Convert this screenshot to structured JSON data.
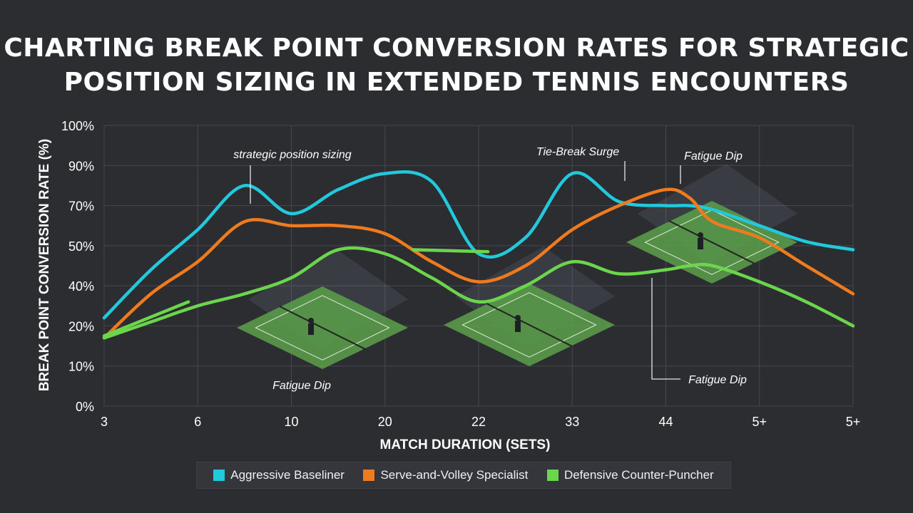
{
  "title_line1": "CHARTING BREAK POINT CONVERSION RATES FOR STRATEGIC",
  "title_line2": "POSITION SIZING IN EXTENDED TENNIS ENCOUNTERS",
  "chart_data": {
    "type": "line",
    "title": "CHARTING BREAK POINT CONVERSION RATES FOR STRATEGIC POSITION SIZING IN EXTENDED TENNIS ENCOUNTERS",
    "xlabel": "MATCH DURATION (SETS)",
    "ylabel": "BREAK POINT CONVERSION RATE (%)",
    "x_ticks": [
      "3",
      "6",
      "10",
      "20",
      "22",
      "33",
      "44",
      "5+",
      "5+"
    ],
    "y_ticks": [
      "0%",
      "10%",
      "20%",
      "40%",
      "50%",
      "70%",
      "90%",
      "100%"
    ],
    "y_note": "y tick labels are evenly spaced despite uneven values; series values are given in tick-index units (0 = 0%, 7 = 100%)",
    "ylim": [
      0,
      7
    ],
    "grid": true,
    "legend_position": "bottom",
    "x": [
      0,
      0.5,
      1,
      1.5,
      2,
      2.5,
      3,
      3.5,
      4,
      4.5,
      5,
      5.5,
      6,
      6.25,
      6.5,
      7,
      7.5,
      8
    ],
    "series": [
      {
        "name": "Aggressive Baseliner",
        "color": "#22c9dc",
        "values": [
          2.2,
          3.4,
          4.4,
          5.5,
          4.8,
          5.4,
          5.8,
          5.6,
          3.8,
          4.2,
          5.8,
          5.1,
          5.0,
          5.0,
          4.9,
          4.5,
          4.1,
          3.9
        ]
      },
      {
        "name": "Serve-and-Volley Specialist",
        "color": "#f07a1e",
        "values": [
          1.7,
          2.8,
          3.6,
          4.6,
          4.5,
          4.5,
          4.3,
          3.6,
          3.1,
          3.5,
          4.4,
          5.0,
          5.4,
          5.2,
          4.6,
          4.2,
          3.5,
          2.8
        ]
      },
      {
        "name": "Defensive Counter-Puncher",
        "color": "#6bd64c",
        "values": [
          1.7,
          2.1,
          2.5,
          2.8,
          3.2,
          3.9,
          3.8,
          3.2,
          2.6,
          3.0,
          3.6,
          3.3,
          3.4,
          3.5,
          3.5,
          3.1,
          2.6,
          2.0
        ]
      }
    ],
    "fragments": [
      {
        "color": "#6bd64c",
        "x": [
          0,
          0.9
        ],
        "values": [
          1.75,
          2.6
        ]
      },
      {
        "color": "#6bd64c",
        "x": [
          3.3,
          4.1
        ],
        "values": [
          3.9,
          3.85
        ]
      }
    ],
    "annotations": [
      {
        "text": "strategic position sizing",
        "x": 1.55,
        "y": 5.5
      },
      {
        "text": "Tie-Break Surge",
        "x": 5.55,
        "y": 5.9
      },
      {
        "text": "Fatigue Dip",
        "x": 6.15,
        "y": 5.5
      },
      {
        "text": "Fatigue Dip",
        "x": 2.35,
        "y": 2.5
      },
      {
        "text": "Fatigue Dip",
        "x": 5.8,
        "y": 3.15
      }
    ]
  },
  "legend": [
    {
      "label": "Aggressive Baseliner",
      "color": "#22c9dc"
    },
    {
      "label": "Serve-and-Volley Specialist",
      "color": "#f07a1e"
    },
    {
      "label": "Defensive Counter-Puncher",
      "color": "#6bd64c"
    }
  ],
  "annotation_labels": {
    "strategic": "strategic position sizing",
    "tiebreak": "Tie-Break Surge",
    "fatigue_top": "Fatigue Dip",
    "fatigue_left": "Fatigue Dip",
    "fatigue_right": "Fatigue Dip"
  },
  "illustrations": [
    "tennis-court-player-illustration",
    "tennis-court-player-illustration",
    "tennis-court-player-illustration"
  ]
}
